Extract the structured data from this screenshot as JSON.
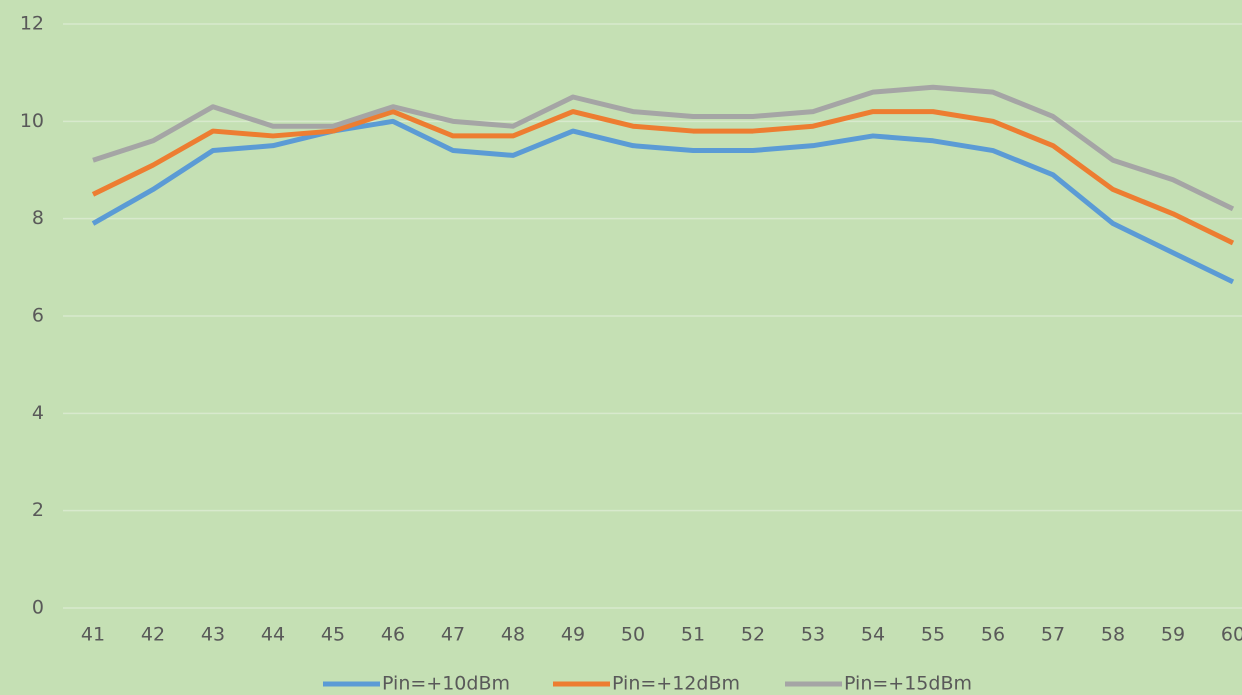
{
  "chart_data": {
    "type": "line",
    "categories": [
      "41",
      "42",
      "43",
      "44",
      "45",
      "46",
      "47",
      "48",
      "49",
      "50",
      "51",
      "52",
      "53",
      "54",
      "55",
      "56",
      "57",
      "58",
      "59",
      "60"
    ],
    "series": [
      {
        "name": "Pin=+10dBm",
        "color": "#5b9bd5",
        "values": [
          7.9,
          8.6,
          9.4,
          9.5,
          9.8,
          10.0,
          9.4,
          9.3,
          9.8,
          9.5,
          9.4,
          9.4,
          9.5,
          9.7,
          9.6,
          9.4,
          8.9,
          7.9,
          7.3,
          6.7
        ]
      },
      {
        "name": "Pin=+12dBm",
        "color": "#ed7d31",
        "values": [
          8.5,
          9.1,
          9.8,
          9.7,
          9.8,
          10.2,
          9.7,
          9.7,
          10.2,
          9.9,
          9.8,
          9.8,
          9.9,
          10.2,
          10.2,
          10.0,
          9.5,
          8.6,
          8.1,
          7.5
        ]
      },
      {
        "name": "Pin=+15dBm",
        "color": "#a5a5a5",
        "values": [
          9.2,
          9.6,
          10.3,
          9.9,
          9.9,
          10.3,
          10.0,
          9.9,
          10.5,
          10.2,
          10.1,
          10.1,
          10.2,
          10.6,
          10.7,
          10.6,
          10.1,
          9.2,
          8.8,
          8.2
        ]
      }
    ],
    "ylim": [
      0,
      12
    ],
    "yticks": [
      0,
      2,
      4,
      6,
      8,
      10,
      12
    ],
    "grid": true,
    "legend": "bottom"
  }
}
